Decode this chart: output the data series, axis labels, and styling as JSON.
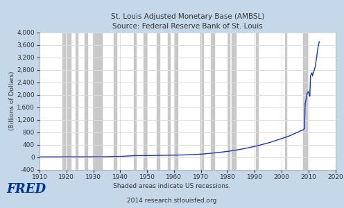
{
  "title_line1": "St. Louis Adjusted Monetary Base (AMBSL)",
  "title_line2": "Source: Federal Reserve Bank of St. Louis",
  "ylabel": "(Billions of Dollars)",
  "xlabel_note1": "Shaded areas indicate US recessions.",
  "xlabel_note2": "2014 research.stlouisfed.org",
  "xlim": [
    1910,
    2020
  ],
  "ylim": [
    -400,
    4000
  ],
  "yticks": [
    -400,
    0,
    400,
    800,
    1200,
    1600,
    2000,
    2400,
    2800,
    3200,
    3600,
    4000
  ],
  "xticks": [
    1910,
    1920,
    1930,
    1940,
    1950,
    1960,
    1970,
    1980,
    1990,
    2000,
    2010,
    2020
  ],
  "line_color": "#1a39a8",
  "recession_color": "#c8c8c8",
  "bg_color": "#c5d8ea",
  "plot_bg_color": "#ffffff",
  "grid_color": "#dddddd",
  "title_color": "#333333",
  "recessions": [
    [
      1918.5,
      1919.5
    ],
    [
      1920.0,
      1921.6
    ],
    [
      1923.5,
      1924.3
    ],
    [
      1926.75,
      1927.75
    ],
    [
      1929.75,
      1933.25
    ],
    [
      1937.5,
      1938.6
    ],
    [
      1945.0,
      1945.75
    ],
    [
      1948.75,
      1949.75
    ],
    [
      1953.5,
      1954.5
    ],
    [
      1957.75,
      1958.5
    ],
    [
      1960.25,
      1961.25
    ],
    [
      1969.75,
      1970.75
    ],
    [
      1973.75,
      1975.0
    ],
    [
      1980.0,
      1980.6
    ],
    [
      1981.5,
      1982.9
    ],
    [
      1990.5,
      1991.25
    ],
    [
      2001.25,
      2001.9
    ],
    [
      2007.9,
      2009.5
    ]
  ],
  "key_points": [
    [
      1910,
      4.5
    ],
    [
      1914,
      4.8
    ],
    [
      1917,
      5.5
    ],
    [
      1919,
      6.5
    ],
    [
      1920,
      5.5
    ],
    [
      1921,
      5.0
    ],
    [
      1922,
      5.2
    ],
    [
      1925,
      5.5
    ],
    [
      1929,
      6.5
    ],
    [
      1930,
      6.8
    ],
    [
      1931,
      7.5
    ],
    [
      1933,
      8.5
    ],
    [
      1934,
      10.0
    ],
    [
      1936,
      12.5
    ],
    [
      1940,
      20.0
    ],
    [
      1943,
      35.0
    ],
    [
      1945,
      45.0
    ],
    [
      1947,
      46.0
    ],
    [
      1950,
      48.0
    ],
    [
      1955,
      53.0
    ],
    [
      1960,
      60.0
    ],
    [
      1965,
      70.0
    ],
    [
      1970,
      90.0
    ],
    [
      1975,
      130.0
    ],
    [
      1980,
      180.0
    ],
    [
      1985,
      250.0
    ],
    [
      1990,
      340.0
    ],
    [
      1995,
      450.0
    ],
    [
      2000,
      590.0
    ],
    [
      2003,
      680.0
    ],
    [
      2005,
      760.0
    ],
    [
      2007,
      840.0
    ],
    [
      2008.0,
      870.0
    ],
    [
      2008.5,
      920.0
    ],
    [
      2008.75,
      1700.0
    ],
    [
      2009.0,
      1800.0
    ],
    [
      2009.5,
      2050.0
    ],
    [
      2010.0,
      2100.0
    ],
    [
      2010.25,
      2000.0
    ],
    [
      2010.5,
      1950.0
    ],
    [
      2010.75,
      2600.0
    ],
    [
      2011.0,
      2650.0
    ],
    [
      2011.25,
      2700.0
    ],
    [
      2011.5,
      2600.0
    ],
    [
      2011.75,
      2700.0
    ],
    [
      2012.0,
      2750.0
    ],
    [
      2012.5,
      2900.0
    ],
    [
      2013.0,
      3200.0
    ],
    [
      2013.5,
      3500.0
    ],
    [
      2014.0,
      3700.0
    ]
  ],
  "fred_text": "FRED",
  "fred_color": "#003399"
}
